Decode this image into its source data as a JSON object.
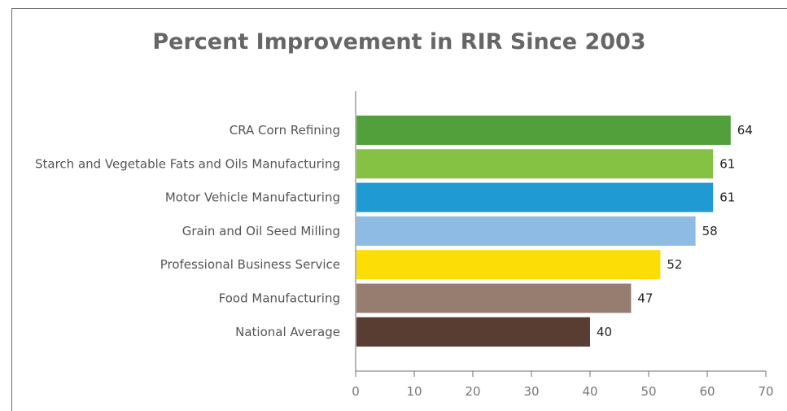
{
  "chart_data": {
    "type": "bar",
    "orientation": "horizontal",
    "title": "Percent Improvement in RIR Since 2003",
    "categories": [
      "CRA Corn Refining",
      "Starch and Vegetable Fats and Oils Manufacturing",
      "Motor Vehicle Manufacturing",
      "Grain and Oil Seed Milling",
      "Professional Business Service",
      "Food Manufacturing",
      "National Average"
    ],
    "values": [
      64,
      61,
      61,
      58,
      52,
      47,
      40
    ],
    "colors": [
      "#52a03c",
      "#85c142",
      "#1f9ad3",
      "#8dbbe3",
      "#fcdd06",
      "#977d70",
      "#5a3d32"
    ],
    "xlim": [
      0,
      70
    ],
    "xticks": [
      "0",
      "10",
      "20",
      "30",
      "40",
      "50",
      "60",
      "70"
    ],
    "xlabel": "",
    "ylabel": "",
    "grid": false,
    "legend": "none"
  }
}
